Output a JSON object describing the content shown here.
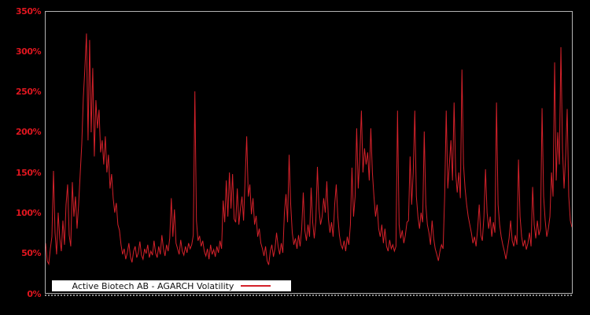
{
  "figure": {
    "background": "#000000",
    "plot_border_color": "#b3b3b3",
    "line_color": "#d4212a",
    "tick_label_color": "#e0161f"
  },
  "y_axis": {
    "labels": [
      "350%",
      "300%",
      "250%",
      "200%",
      "150%",
      "100%",
      "50%",
      "0%"
    ]
  },
  "x_axis": {
    "labels": [],
    "note_ticks_visible": "dense unlabeled tick dashes along bottom edge"
  },
  "legend": {
    "label": "Active Biotech AB - AGARCH Volatility",
    "key": "red-line-sample"
  },
  "chart_data": {
    "type": "line",
    "title": "",
    "series": [
      {
        "name": "Active Biotech AB - AGARCH Volatility",
        "values": [
          62,
          40,
          36,
          55,
          70,
          152,
          75,
          48,
          100,
          68,
          52,
          90,
          60,
          110,
          135,
          72,
          58,
          138,
          95,
          120,
          80,
          110,
          148,
          185,
          243,
          280,
          323,
          190,
          315,
          200,
          280,
          170,
          240,
          205,
          228,
          175,
          190,
          160,
          195,
          150,
          172,
          130,
          148,
          118,
          100,
          112,
          85,
          78,
          60,
          48,
          55,
          42,
          50,
          62,
          45,
          38,
          52,
          58,
          44,
          50,
          64,
          47,
          42,
          55,
          49,
          60,
          44,
          52,
          47,
          65,
          50,
          44,
          58,
          48,
          72,
          55,
          46,
          60,
          52,
          68,
          118,
          70,
          104,
          62,
          55,
          48,
          66,
          52,
          47,
          58,
          50,
          62,
          55,
          60,
          72,
          251,
          90,
          65,
          71,
          58,
          65,
          52,
          46,
          55,
          42,
          60,
          48,
          54,
          45,
          58,
          50,
          65,
          55,
          115,
          88,
          140,
          95,
          150,
          105,
          148,
          92,
          88,
          130,
          85,
          105,
          120,
          90,
          142,
          195,
          120,
          135,
          98,
          118,
          85,
          96,
          70,
          80,
          62,
          55,
          46,
          58,
          40,
          35,
          52,
          60,
          45,
          55,
          75,
          58,
          48,
          62,
          50,
          100,
          123,
          88,
          172,
          110,
          75,
          60,
          68,
          55,
          72,
          58,
          80,
          125,
          78,
          65,
          85,
          70,
          131,
          88,
          68,
          90,
          157,
          105,
          85,
          95,
          118,
          100,
          139,
          92,
          75,
          88,
          70,
          110,
          135,
          95,
          72,
          60,
          55,
          65,
          52,
          70,
          60,
          85,
          156,
          95,
          120,
          205,
          130,
          170,
          227,
          150,
          180,
          160,
          175,
          140,
          205,
          150,
          120,
          95,
          110,
          80,
          70,
          85,
          62,
          80,
          58,
          52,
          66,
          55,
          60,
          52,
          58,
          227,
          85,
          68,
          78,
          62,
          72,
          88,
          90,
          170,
          110,
          150,
          227,
          120,
          95,
          80,
          100,
          88,
          201,
          110,
          85,
          75,
          60,
          90,
          68,
          55,
          48,
          40,
          52,
          60,
          55,
          120,
          227,
          130,
          160,
          190,
          140,
          237,
          150,
          125,
          150,
          118,
          278,
          160,
          130,
          110,
          95,
          85,
          75,
          62,
          70,
          58,
          80,
          110,
          72,
          65,
          95,
          154,
          100,
          80,
          95,
          70,
          88,
          75,
          237,
          110,
          85,
          70,
          60,
          52,
          42,
          55,
          68,
          90,
          65,
          58,
          72,
          60,
          166,
          95,
          70,
          58,
          66,
          54,
          62,
          75,
          58,
          132,
          85,
          68,
          90,
          72,
          80,
          230,
          120,
          90,
          70,
          80,
          95,
          150,
          120,
          287,
          140,
          200,
          160,
          306,
          180,
          130,
          170,
          229,
          120,
          90,
          82
        ]
      }
    ],
    "unit": "%",
    "ylim": [
      0,
      350
    ],
    "yticks": [
      "0%",
      "50%",
      "100%",
      "150%",
      "200%",
      "250%",
      "300%",
      "350%"
    ],
    "xticks": [],
    "grid": false,
    "plot_background": "#000000",
    "legend_position": "bottom-left inside plot area"
  }
}
